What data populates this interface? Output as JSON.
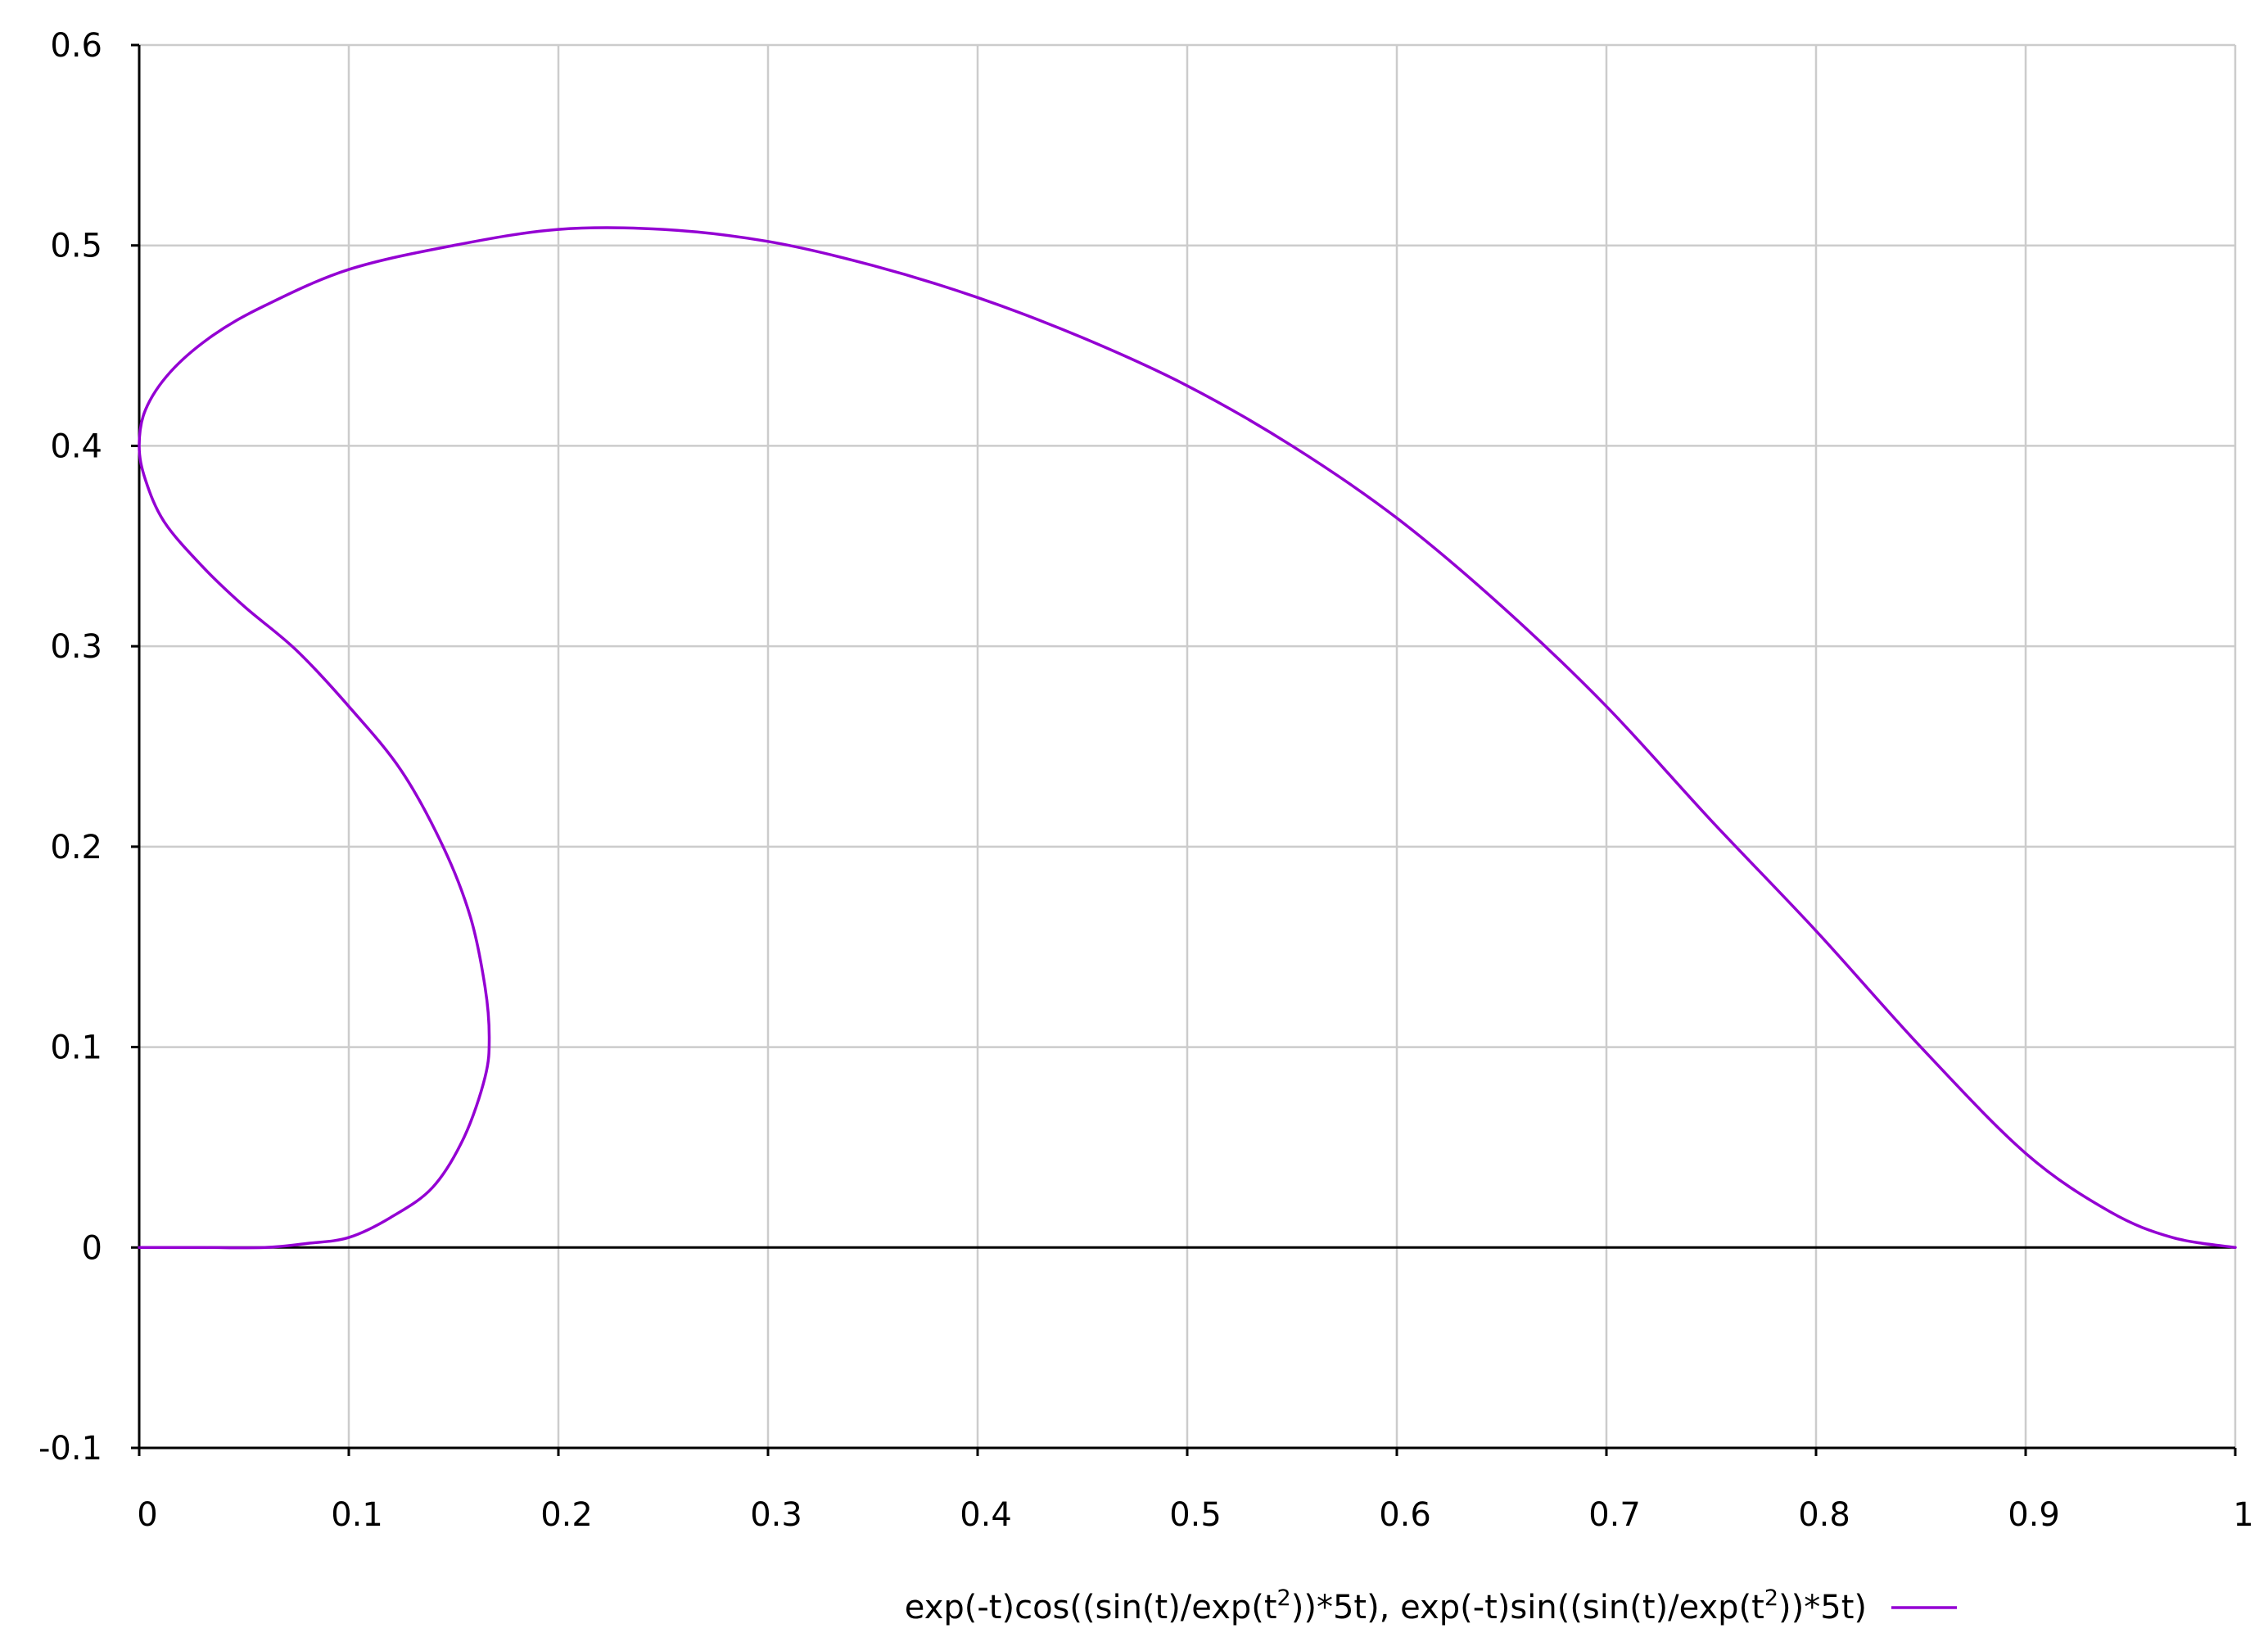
{
  "chart_data": {
    "type": "line",
    "title": "",
    "xlabel": "",
    "ylabel": "",
    "xlim": [
      0,
      1
    ],
    "ylim": [
      -0.1,
      0.6
    ],
    "x_ticks": [
      0,
      0.1,
      0.2,
      0.3,
      0.4,
      0.5,
      0.6,
      0.7,
      0.8,
      0.9,
      1
    ],
    "x_tick_labels": [
      "0",
      "0.1",
      "0.2",
      "0.3",
      "0.4",
      "0.5",
      "0.6",
      "0.7",
      "0.8",
      "0.9",
      "1"
    ],
    "y_ticks": [
      -0.1,
      0,
      0.1,
      0.2,
      0.3,
      0.4,
      0.5,
      0.6
    ],
    "y_tick_labels": [
      "-0.1",
      "0",
      "0.1",
      "0.2",
      "0.3",
      "0.4",
      "0.5",
      "0.6"
    ],
    "grid": true,
    "zero_line": true,
    "legend_position": "bottom-center",
    "legend": {
      "parts": [
        {
          "text": "exp(-t)cos((sin(t)/exp(t",
          "sup": false
        },
        {
          "text": "2",
          "sup": true
        },
        {
          "text": "))*5t), exp(-t)sin((sin(t)/exp(t",
          "sup": false
        },
        {
          "text": "2",
          "sup": true
        },
        {
          "text": "))*5t)",
          "sup": false
        }
      ]
    },
    "series": [
      {
        "name": "exp(-t)cos((sin(t)/exp(t2))*5t), exp(-t)sin((sin(t)/exp(t2))*5t)",
        "color": "#9400d3",
        "points": [
          [
            0.0,
            0.0
          ],
          [
            0.03,
            0.0
          ],
          [
            0.06,
            0.0
          ],
          [
            0.08,
            0.002
          ],
          [
            0.1,
            0.005
          ],
          [
            0.12,
            0.015
          ],
          [
            0.14,
            0.03
          ],
          [
            0.155,
            0.055
          ],
          [
            0.165,
            0.085
          ],
          [
            0.167,
            0.105
          ],
          [
            0.165,
            0.13
          ],
          [
            0.158,
            0.165
          ],
          [
            0.145,
            0.2
          ],
          [
            0.125,
            0.238
          ],
          [
            0.1,
            0.27
          ],
          [
            0.075,
            0.298
          ],
          [
            0.05,
            0.32
          ],
          [
            0.03,
            0.34
          ],
          [
            0.012,
            0.362
          ],
          [
            0.003,
            0.383
          ],
          [
            0.0,
            0.4
          ],
          [
            0.003,
            0.418
          ],
          [
            0.015,
            0.437
          ],
          [
            0.035,
            0.455
          ],
          [
            0.06,
            0.47
          ],
          [
            0.1,
            0.488
          ],
          [
            0.15,
            0.5
          ],
          [
            0.2,
            0.508
          ],
          [
            0.25,
            0.508
          ],
          [
            0.3,
            0.502
          ],
          [
            0.35,
            0.49
          ],
          [
            0.4,
            0.474
          ],
          [
            0.45,
            0.454
          ],
          [
            0.5,
            0.43
          ],
          [
            0.55,
            0.4
          ],
          [
            0.6,
            0.364
          ],
          [
            0.65,
            0.32
          ],
          [
            0.7,
            0.27
          ],
          [
            0.75,
            0.213
          ],
          [
            0.8,
            0.158
          ],
          [
            0.85,
            0.1
          ],
          [
            0.9,
            0.047
          ],
          [
            0.94,
            0.018
          ],
          [
            0.97,
            0.005
          ],
          [
            1.0,
            0.0
          ]
        ]
      }
    ]
  }
}
